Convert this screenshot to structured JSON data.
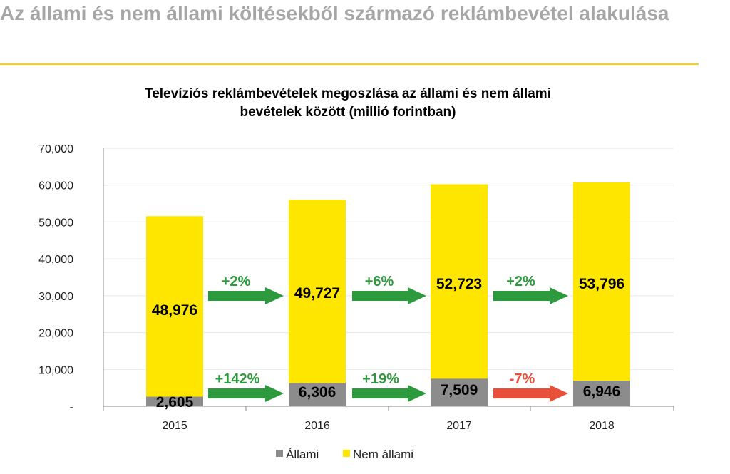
{
  "page": {
    "title": "Az állami és nem állami költésekből származó reklámbevétel alakulása"
  },
  "colors": {
    "heading": "#a6a6a6",
    "rule": "#f5d800",
    "allami": "#8c8c8c",
    "nem_allami": "#ffe600",
    "arrow_up": "#2e9a3e",
    "arrow_down": "#e8503a"
  },
  "chart_data": {
    "type": "bar",
    "stacked": true,
    "title_line1": "Televíziós reklámbevételek megoszlása az állami és nem állami",
    "title_line2": "bevételek között (millió forintban)",
    "categories": [
      "2015",
      "2016",
      "2017",
      "2018"
    ],
    "series": [
      {
        "name": "Állami",
        "values": [
          2605,
          6306,
          7509,
          6946
        ],
        "labels": [
          "2,605",
          "6,306",
          "7,509",
          "6,946"
        ]
      },
      {
        "name": "Nem állami",
        "values": [
          48976,
          49727,
          52723,
          53796
        ],
        "labels": [
          "48,976",
          "49,727",
          "52,723",
          "53,796"
        ]
      }
    ],
    "y_ticks": [
      {
        "value": 0,
        "label": "-"
      },
      {
        "value": 10000,
        "label": "10,000"
      },
      {
        "value": 20000,
        "label": "20,000"
      },
      {
        "value": 30000,
        "label": "30,000"
      },
      {
        "value": 40000,
        "label": "40,000"
      },
      {
        "value": 50000,
        "label": "50,000"
      },
      {
        "value": 60000,
        "label": "60,000"
      },
      {
        "value": 70000,
        "label": "70,000"
      }
    ],
    "ylim": [
      0,
      70000
    ],
    "grid": true,
    "legend_position": "bottom",
    "changes": {
      "nem_allami": [
        "+2%",
        "+6%",
        "+2%"
      ],
      "allami": [
        "+142%",
        "+19%",
        "-7%"
      ]
    }
  }
}
